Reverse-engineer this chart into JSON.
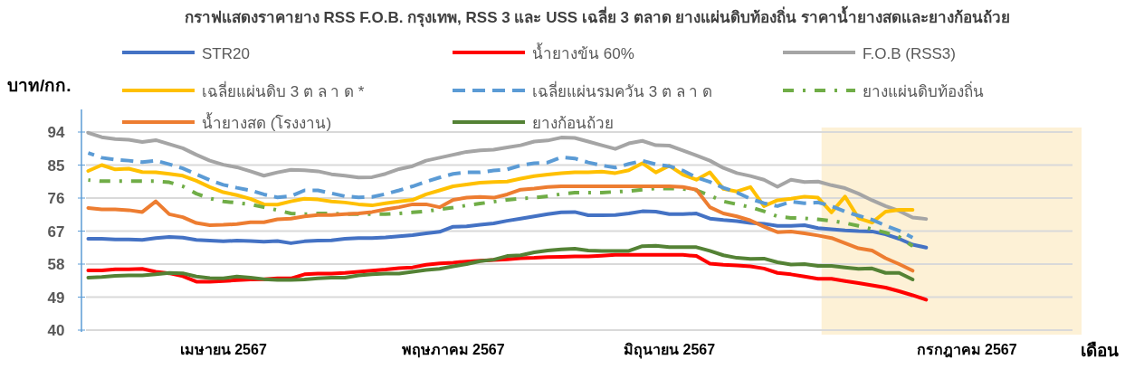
{
  "chart_data": {
    "type": "line",
    "title": "กราฟแสดงราคายาง RSS F.O.B. กรุงเทพ, RSS 3 และ USS เฉลี่ย 3 ตลาด ยางแผ่นดิบท้องถิ่น ราคาน้ำยางสดและยางก้อนถ้วย",
    "ylabel": "บาท/กก.",
    "xlabel": "เดือน",
    "categories": [
      null,
      null,
      null,
      null,
      null,
      null,
      null,
      null,
      null,
      null,
      "เมษายน 2567",
      null,
      null,
      null,
      null,
      null,
      null,
      null,
      null,
      null,
      null,
      null,
      null,
      null,
      null,
      null,
      null,
      "พฤษภาคม 2567",
      null,
      null,
      null,
      null,
      null,
      null,
      null,
      null,
      null,
      null,
      null,
      null,
      null,
      null,
      null,
      "มิถุนายน 2567",
      null,
      null,
      null,
      null,
      null,
      null,
      null,
      null,
      null,
      null,
      null,
      null,
      null,
      null,
      null,
      null,
      null,
      null,
      null,
      null,
      null,
      "กรกฎาคม 2567",
      null,
      null,
      null,
      null,
      null,
      null,
      null,
      null
    ],
    "ylim": [
      40,
      94
    ],
    "yticks": [
      94,
      85,
      76,
      67,
      58,
      49,
      40
    ],
    "grid": "y",
    "legend": "top",
    "series": [
      {
        "name": "STR20",
        "color": "#4472c4",
        "values": [
          64.9,
          64.9,
          64.7,
          64.7,
          64.6,
          65.1,
          65.4,
          65.2,
          64.6,
          64.4,
          64.2,
          64.4,
          64.3,
          64.1,
          64.3,
          63.7,
          64.2,
          64.4,
          64.5,
          64.9,
          65.1,
          65.1,
          65.3,
          65.6,
          65.9,
          66.4,
          66.8,
          68.2,
          68.3,
          68.7,
          69.1,
          69.8,
          70.4,
          71,
          71.6,
          72.1,
          72.2,
          71.3,
          71.3,
          71.4,
          71.8,
          72.4,
          72.3,
          71.6,
          71.6,
          71.8,
          70.4,
          70,
          69.7,
          69.2,
          69,
          68.4,
          68.4,
          68.6,
          67.8,
          67.5,
          67.2,
          67,
          66.9,
          66.1,
          64.9,
          63.3,
          62.5,
          null,
          null,
          null,
          null,
          null,
          null,
          null,
          null,
          null,
          null,
          null
        ]
      },
      {
        "name": "น้ำยางข้น 60%",
        "color": "#ff0000",
        "values": [
          56.3,
          56.3,
          56.6,
          56.6,
          56.7,
          55.9,
          55.5,
          54.7,
          53.2,
          53.2,
          53.4,
          53.6,
          53.8,
          53.9,
          54.1,
          54.1,
          55.2,
          55.4,
          55.4,
          55.6,
          55.9,
          56.2,
          56.5,
          56.9,
          57.1,
          57.8,
          58.2,
          58.4,
          58.7,
          58.9,
          59.1,
          59.3,
          59.6,
          59.7,
          59.9,
          60,
          60.1,
          60.1,
          60.3,
          60.5,
          60.5,
          60.5,
          60.5,
          60.5,
          60.5,
          60.2,
          58.1,
          57.8,
          57.6,
          57.4,
          56.8,
          55.6,
          55.2,
          54.6,
          54,
          54,
          53.4,
          52.8,
          52.2,
          51.6,
          50.6,
          49.5,
          48.3,
          null,
          null,
          null,
          null,
          null,
          null,
          null,
          null,
          null,
          null,
          null
        ]
      },
      {
        "name": "F.O.B (RSS3)",
        "color": "#a5a5a5",
        "values": [
          93.8,
          92.6,
          92.1,
          91.9,
          91.3,
          91.8,
          90.7,
          89.6,
          87.8,
          86.2,
          85.1,
          84.4,
          83.3,
          82.1,
          83,
          83.7,
          83.6,
          83.3,
          82.5,
          82.1,
          81.6,
          81.7,
          82.6,
          83.9,
          84.7,
          86.2,
          87,
          87.8,
          88.6,
          89,
          89.2,
          89.8,
          90.4,
          91.4,
          91.7,
          92.5,
          92.4,
          91.4,
          90.4,
          89.4,
          90.9,
          91.6,
          90.4,
          90.3,
          89,
          87.6,
          86.2,
          84.2,
          82.8,
          82,
          81,
          79.1,
          81,
          80.4,
          80.5,
          79.5,
          78.7,
          77.2,
          75.4,
          73.8,
          72.5,
          70.7,
          70.3,
          null,
          null,
          null,
          null,
          null,
          null,
          null,
          null,
          null,
          null,
          null
        ]
      },
      {
        "name": "เฉลี่ยแผ่นดิบ 3 ต ล า ด *",
        "color": "#ffc000",
        "values": [
          83.4,
          85,
          83.8,
          84,
          83.1,
          83,
          82.6,
          82.1,
          80.7,
          79,
          77.6,
          76.8,
          75.8,
          74.3,
          74.2,
          75.1,
          75.8,
          75.6,
          75.1,
          74.8,
          74.3,
          74,
          74.6,
          75.1,
          75.5,
          77,
          78.1,
          79.2,
          79.7,
          80.2,
          80.4,
          80.5,
          81.3,
          82,
          82.4,
          82.8,
          83,
          83,
          83.2,
          82.8,
          83.6,
          85.5,
          83,
          84.8,
          82.4,
          81,
          83,
          78.5,
          77.8,
          79,
          73.8,
          75.4,
          75.8,
          76.4,
          76.1,
          72.1,
          76.4,
          70.5,
          69.3,
          72.3,
          72.8,
          72.8,
          null,
          null,
          null,
          null,
          null,
          null,
          null,
          null,
          null,
          null,
          null,
          null
        ]
      },
      {
        "name": "เฉลี่ยแผ่นรมควัน 3 ต ล า ด",
        "color": "#5b9bd5",
        "line_style": "dashed",
        "values": [
          88.3,
          87,
          86.5,
          86.2,
          85.8,
          86.2,
          85.2,
          84.1,
          82.5,
          80.9,
          79.6,
          78.8,
          78.1,
          77,
          76.2,
          76.5,
          78.1,
          78.1,
          77.3,
          76.5,
          76.2,
          76.3,
          77.1,
          78.1,
          79.2,
          80.5,
          81.6,
          82.6,
          83,
          83,
          83.5,
          83.8,
          84.9,
          85.5,
          85.7,
          87.1,
          86.8,
          85.7,
          84.9,
          84.3,
          85.3,
          86.2,
          85.2,
          84.7,
          83.5,
          81.6,
          80.4,
          78.8,
          77.5,
          75.8,
          74.6,
          73.8,
          75,
          74.6,
          74.8,
          73.8,
          72.3,
          71.2,
          70.1,
          68.5,
          67.1,
          65.2,
          null,
          null,
          null,
          null,
          null,
          null,
          null,
          null,
          null,
          null,
          null,
          null
        ]
      },
      {
        "name": "ยางแผ่นดิบท้องถิ่น",
        "color": "#70ad47",
        "line_style": "dashdot",
        "values": [
          80.9,
          80.6,
          80.6,
          80.6,
          80.6,
          80.6,
          80.3,
          79.2,
          77.2,
          75.9,
          75.1,
          74.7,
          74.3,
          73.5,
          72.7,
          71.8,
          71.6,
          71.8,
          71.8,
          71.6,
          71.6,
          71.6,
          71.6,
          71.8,
          72.1,
          72.4,
          72.9,
          73.4,
          74,
          74.5,
          75,
          75.5,
          75.9,
          76.1,
          76.5,
          77.1,
          77.5,
          77.5,
          77.5,
          77.7,
          77.9,
          78.3,
          78.6,
          78.6,
          78.5,
          78.1,
          76.7,
          75.1,
          74.3,
          73.5,
          72.4,
          71,
          70.6,
          70.5,
          70.2,
          69.8,
          69.2,
          68.4,
          67.5,
          66.6,
          65.4,
          62.9,
          null,
          null,
          null,
          null,
          null,
          null,
          null,
          null,
          null,
          null,
          null,
          null
        ]
      },
      {
        "name": "น้ำยางสด (โรงงาน)",
        "color": "#ed7d31",
        "values": [
          73.3,
          72.9,
          72.9,
          72.7,
          72.2,
          75.1,
          71.6,
          70.8,
          69.2,
          68.6,
          68.7,
          68.9,
          69.4,
          69.4,
          70.2,
          70.4,
          71,
          71.4,
          71.4,
          71.6,
          71.8,
          72.2,
          72.9,
          73.5,
          74.3,
          74.3,
          73.5,
          75.5,
          76.1,
          76.3,
          76.1,
          77,
          78.3,
          78.6,
          79,
          79.2,
          79.2,
          79.2,
          79.2,
          79.2,
          79.2,
          79.2,
          79.2,
          79.2,
          79,
          78.3,
          73.5,
          71.8,
          71,
          69.9,
          68.2,
          66.7,
          66.9,
          66.4,
          65.8,
          65.1,
          63.7,
          62.3,
          61.7,
          59.6,
          58,
          56.2,
          null,
          null,
          null,
          null,
          null,
          null,
          null,
          null,
          null,
          null,
          null,
          null
        ]
      },
      {
        "name": "ยางก้อนถ้วย",
        "color": "#548235",
        "values": [
          54.3,
          54.5,
          54.8,
          54.9,
          54.9,
          55.2,
          55.6,
          55.5,
          54.6,
          54.2,
          54.1,
          54.6,
          54.3,
          53.9,
          53.7,
          53.7,
          53.8,
          54.1,
          54.3,
          54.3,
          54.9,
          55.2,
          55.4,
          55.4,
          55.9,
          56.4,
          56.7,
          57.4,
          58,
          58.8,
          59.2,
          60.2,
          60.4,
          61.2,
          61.7,
          62,
          62.2,
          61.7,
          61.6,
          61.6,
          61.6,
          62.9,
          63,
          62.6,
          62.6,
          62.6,
          61.6,
          60.4,
          59.7,
          59.4,
          59.5,
          58.5,
          57.9,
          58,
          57.5,
          57.5,
          57.1,
          56.7,
          56.8,
          55.6,
          55.6,
          53.8,
          null,
          null,
          null,
          null,
          null,
          null,
          null,
          null,
          null,
          null,
          null,
          null
        ]
      }
    ]
  }
}
